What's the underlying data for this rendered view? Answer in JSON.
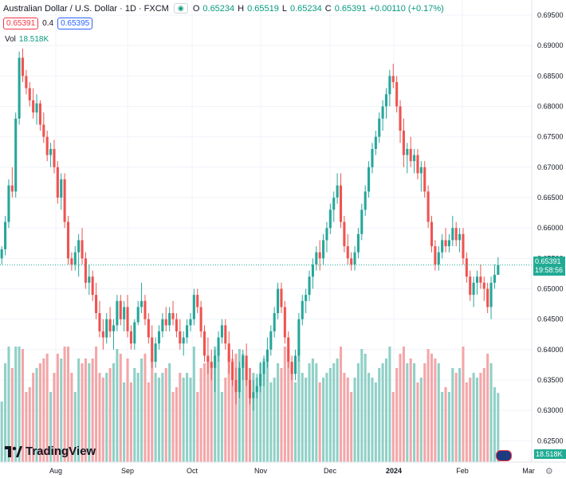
{
  "header": {
    "symbol_title": "Australian Dollar / U.S. Dollar · 1D · FXCM",
    "ohlc": {
      "o_label": "O",
      "o": "0.65234",
      "h_label": "H",
      "h": "0.65519",
      "l_label": "L",
      "l": "0.65234",
      "c_label": "C",
      "c": "0.65391",
      "change": "+0.00110 (+0.17%)"
    },
    "sell_price": "0.65391",
    "spread": "0.4",
    "buy_price": "0.65395",
    "volume_label": "Vol",
    "volume_value": "18.518K"
  },
  "logo": {
    "text": "TradingView"
  },
  "last_price_tag": {
    "price": "0.65391",
    "countdown": "19:58:56"
  },
  "volume_tag": "18.518K",
  "colors": {
    "up": "#26a69a",
    "down": "#ef5350",
    "vol_up": "#8fd0c7",
    "vol_down": "#f4a6a8",
    "grid": "#f0f3fa",
    "axis_text": "#131722"
  },
  "chart_data": {
    "type": "candlestick",
    "title": "Australian Dollar / U.S. Dollar · 1D · FXCM",
    "y_axis": {
      "range": [
        0.6215,
        0.6975
      ],
      "ticks": [
        "0.69500",
        "0.69000",
        "0.68500",
        "0.68000",
        "0.67500",
        "0.67000",
        "0.66500",
        "0.66000",
        "0.65500",
        "0.65000",
        "0.64500",
        "0.64000",
        "0.63500",
        "0.63000",
        "0.62500"
      ]
    },
    "x_axis": {
      "ticks": [
        "Aug",
        "Sep",
        "Oct",
        "Nov",
        "Dec",
        "2024",
        "Feb",
        "Mar"
      ]
    },
    "candles_total_slots": 183,
    "last_price": 0.65391,
    "candles": [
      [
        0.655,
        0.657,
        0.654,
        0.6565
      ],
      [
        0.6565,
        0.662,
        0.6555,
        0.661
      ],
      [
        0.661,
        0.668,
        0.66,
        0.667
      ],
      [
        0.667,
        0.67,
        0.665,
        0.666
      ],
      [
        0.666,
        0.679,
        0.665,
        0.678
      ],
      [
        0.678,
        0.689,
        0.677,
        0.688
      ],
      [
        0.688,
        0.6895,
        0.684,
        0.685
      ],
      [
        0.685,
        0.686,
        0.682,
        0.683
      ],
      [
        0.683,
        0.684,
        0.68,
        0.681
      ],
      [
        0.681,
        0.683,
        0.678,
        0.679
      ],
      [
        0.679,
        0.682,
        0.677,
        0.6805
      ],
      [
        0.6805,
        0.681,
        0.676,
        0.677
      ],
      [
        0.677,
        0.679,
        0.674,
        0.675
      ],
      [
        0.675,
        0.676,
        0.671,
        0.672
      ],
      [
        0.672,
        0.674,
        0.67,
        0.673
      ],
      [
        0.673,
        0.6745,
        0.669,
        0.67
      ],
      [
        0.67,
        0.671,
        0.664,
        0.665
      ],
      [
        0.665,
        0.669,
        0.663,
        0.668
      ],
      [
        0.668,
        0.669,
        0.66,
        0.661
      ],
      [
        0.661,
        0.662,
        0.654,
        0.655
      ],
      [
        0.655,
        0.656,
        0.653,
        0.654
      ],
      [
        0.654,
        0.657,
        0.653,
        0.656
      ],
      [
        0.656,
        0.659,
        0.652,
        0.658
      ],
      [
        0.658,
        0.66,
        0.654,
        0.655
      ],
      [
        0.655,
        0.656,
        0.65,
        0.651
      ],
      [
        0.651,
        0.654,
        0.649,
        0.652
      ],
      [
        0.652,
        0.653,
        0.648,
        0.649
      ],
      [
        0.649,
        0.651,
        0.645,
        0.646
      ],
      [
        0.646,
        0.648,
        0.642,
        0.643
      ],
      [
        0.643,
        0.645,
        0.64,
        0.642
      ],
      [
        0.642,
        0.646,
        0.641,
        0.645
      ],
      [
        0.645,
        0.647,
        0.642,
        0.643
      ],
      [
        0.643,
        0.645,
        0.64,
        0.644
      ],
      [
        0.644,
        0.649,
        0.643,
        0.648
      ],
      [
        0.648,
        0.649,
        0.644,
        0.645
      ],
      [
        0.645,
        0.648,
        0.643,
        0.647
      ],
      [
        0.647,
        0.649,
        0.642,
        0.643
      ],
      [
        0.643,
        0.644,
        0.64,
        0.641
      ],
      [
        0.641,
        0.645,
        0.64,
        0.6445
      ],
      [
        0.6445,
        0.648,
        0.644,
        0.647
      ],
      [
        0.647,
        0.651,
        0.646,
        0.648
      ],
      [
        0.648,
        0.649,
        0.644,
        0.645
      ],
      [
        0.645,
        0.646,
        0.641,
        0.642
      ],
      [
        0.642,
        0.644,
        0.637,
        0.638
      ],
      [
        0.638,
        0.642,
        0.637,
        0.641
      ],
      [
        0.641,
        0.644,
        0.64,
        0.643
      ],
      [
        0.643,
        0.646,
        0.642,
        0.645
      ],
      [
        0.645,
        0.647,
        0.643,
        0.644
      ],
      [
        0.644,
        0.647,
        0.643,
        0.646
      ],
      [
        0.646,
        0.648,
        0.644,
        0.645
      ],
      [
        0.645,
        0.646,
        0.642,
        0.643
      ],
      [
        0.643,
        0.645,
        0.64,
        0.641
      ],
      [
        0.641,
        0.643,
        0.639,
        0.642
      ],
      [
        0.642,
        0.645,
        0.641,
        0.644
      ],
      [
        0.644,
        0.646,
        0.643,
        0.645
      ],
      [
        0.645,
        0.65,
        0.644,
        0.649
      ],
      [
        0.649,
        0.65,
        0.646,
        0.647
      ],
      [
        0.647,
        0.648,
        0.642,
        0.643
      ],
      [
        0.643,
        0.644,
        0.638,
        0.639
      ],
      [
        0.639,
        0.642,
        0.636,
        0.638
      ],
      [
        0.638,
        0.64,
        0.635,
        0.637
      ],
      [
        0.637,
        0.64,
        0.633,
        0.639
      ],
      [
        0.639,
        0.643,
        0.638,
        0.642
      ],
      [
        0.642,
        0.645,
        0.641,
        0.644
      ],
      [
        0.644,
        0.645,
        0.64,
        0.641
      ],
      [
        0.641,
        0.643,
        0.636,
        0.638
      ],
      [
        0.638,
        0.64,
        0.634,
        0.635
      ],
      [
        0.635,
        0.637,
        0.631,
        0.633
      ],
      [
        0.633,
        0.638,
        0.632,
        0.637
      ],
      [
        0.637,
        0.64,
        0.635,
        0.639
      ],
      [
        0.639,
        0.641,
        0.634,
        0.635
      ],
      [
        0.635,
        0.637,
        0.631,
        0.632
      ],
      [
        0.632,
        0.635,
        0.63,
        0.633
      ],
      [
        0.633,
        0.636,
        0.632,
        0.634
      ],
      [
        0.634,
        0.638,
        0.633,
        0.636
      ],
      [
        0.636,
        0.639,
        0.634,
        0.638
      ],
      [
        0.638,
        0.642,
        0.637,
        0.64
      ],
      [
        0.64,
        0.644,
        0.639,
        0.643
      ],
      [
        0.643,
        0.647,
        0.642,
        0.646
      ],
      [
        0.646,
        0.651,
        0.645,
        0.65
      ],
      [
        0.65,
        0.651,
        0.646,
        0.647
      ],
      [
        0.647,
        0.648,
        0.641,
        0.642
      ],
      [
        0.642,
        0.643,
        0.637,
        0.638
      ],
      [
        0.638,
        0.639,
        0.635,
        0.636
      ],
      [
        0.636,
        0.64,
        0.635,
        0.639
      ],
      [
        0.639,
        0.646,
        0.638,
        0.645
      ],
      [
        0.645,
        0.649,
        0.644,
        0.648
      ],
      [
        0.648,
        0.65,
        0.646,
        0.649
      ],
      [
        0.649,
        0.653,
        0.648,
        0.652
      ],
      [
        0.652,
        0.655,
        0.65,
        0.654
      ],
      [
        0.654,
        0.657,
        0.653,
        0.656
      ],
      [
        0.656,
        0.658,
        0.653,
        0.655
      ],
      [
        0.655,
        0.659,
        0.654,
        0.658
      ],
      [
        0.658,
        0.661,
        0.656,
        0.66
      ],
      [
        0.66,
        0.664,
        0.659,
        0.663
      ],
      [
        0.663,
        0.666,
        0.661,
        0.665
      ],
      [
        0.665,
        0.669,
        0.664,
        0.667
      ],
      [
        0.667,
        0.669,
        0.66,
        0.661
      ],
      [
        0.661,
        0.662,
        0.656,
        0.657
      ],
      [
        0.657,
        0.659,
        0.654,
        0.655
      ],
      [
        0.655,
        0.656,
        0.653,
        0.654
      ],
      [
        0.654,
        0.657,
        0.653,
        0.656
      ],
      [
        0.656,
        0.66,
        0.655,
        0.659
      ],
      [
        0.659,
        0.664,
        0.658,
        0.663
      ],
      [
        0.663,
        0.667,
        0.662,
        0.666
      ],
      [
        0.666,
        0.671,
        0.665,
        0.67
      ],
      [
        0.67,
        0.674,
        0.669,
        0.673
      ],
      [
        0.673,
        0.676,
        0.672,
        0.675
      ],
      [
        0.675,
        0.679,
        0.674,
        0.678
      ],
      [
        0.678,
        0.681,
        0.676,
        0.68
      ],
      [
        0.68,
        0.683,
        0.678,
        0.682
      ],
      [
        0.682,
        0.686,
        0.68,
        0.685
      ],
      [
        0.685,
        0.687,
        0.683,
        0.684
      ],
      [
        0.684,
        0.685,
        0.679,
        0.68
      ],
      [
        0.68,
        0.681,
        0.674,
        0.676
      ],
      [
        0.676,
        0.678,
        0.67,
        0.672
      ],
      [
        0.672,
        0.674,
        0.669,
        0.673
      ],
      [
        0.673,
        0.675,
        0.67,
        0.671
      ],
      [
        0.671,
        0.673,
        0.669,
        0.672
      ],
      [
        0.672,
        0.673,
        0.668,
        0.669
      ],
      [
        0.669,
        0.671,
        0.666,
        0.67
      ],
      [
        0.67,
        0.671,
        0.665,
        0.666
      ],
      [
        0.666,
        0.667,
        0.66,
        0.661
      ],
      [
        0.661,
        0.662,
        0.656,
        0.657
      ],
      [
        0.657,
        0.658,
        0.653,
        0.654
      ],
      [
        0.654,
        0.657,
        0.653,
        0.656
      ],
      [
        0.656,
        0.659,
        0.655,
        0.658
      ],
      [
        0.658,
        0.66,
        0.656,
        0.657
      ],
      [
        0.657,
        0.659,
        0.656,
        0.658
      ],
      [
        0.658,
        0.662,
        0.657,
        0.66
      ],
      [
        0.66,
        0.661,
        0.657,
        0.658
      ],
      [
        0.658,
        0.66,
        0.656,
        0.659
      ],
      [
        0.659,
        0.66,
        0.654,
        0.655
      ],
      [
        0.655,
        0.656,
        0.651,
        0.652
      ],
      [
        0.652,
        0.653,
        0.648,
        0.649
      ],
      [
        0.649,
        0.652,
        0.647,
        0.651
      ],
      [
        0.651,
        0.653,
        0.649,
        0.652
      ],
      [
        0.652,
        0.654,
        0.65,
        0.651
      ],
      [
        0.651,
        0.652,
        0.648,
        0.65
      ],
      [
        0.65,
        0.651,
        0.646,
        0.647
      ],
      [
        0.647,
        0.652,
        0.645,
        0.651
      ],
      [
        0.651,
        0.654,
        0.65,
        0.6523
      ],
      [
        0.6523,
        0.6552,
        0.6523,
        0.6539
      ]
    ]
  }
}
